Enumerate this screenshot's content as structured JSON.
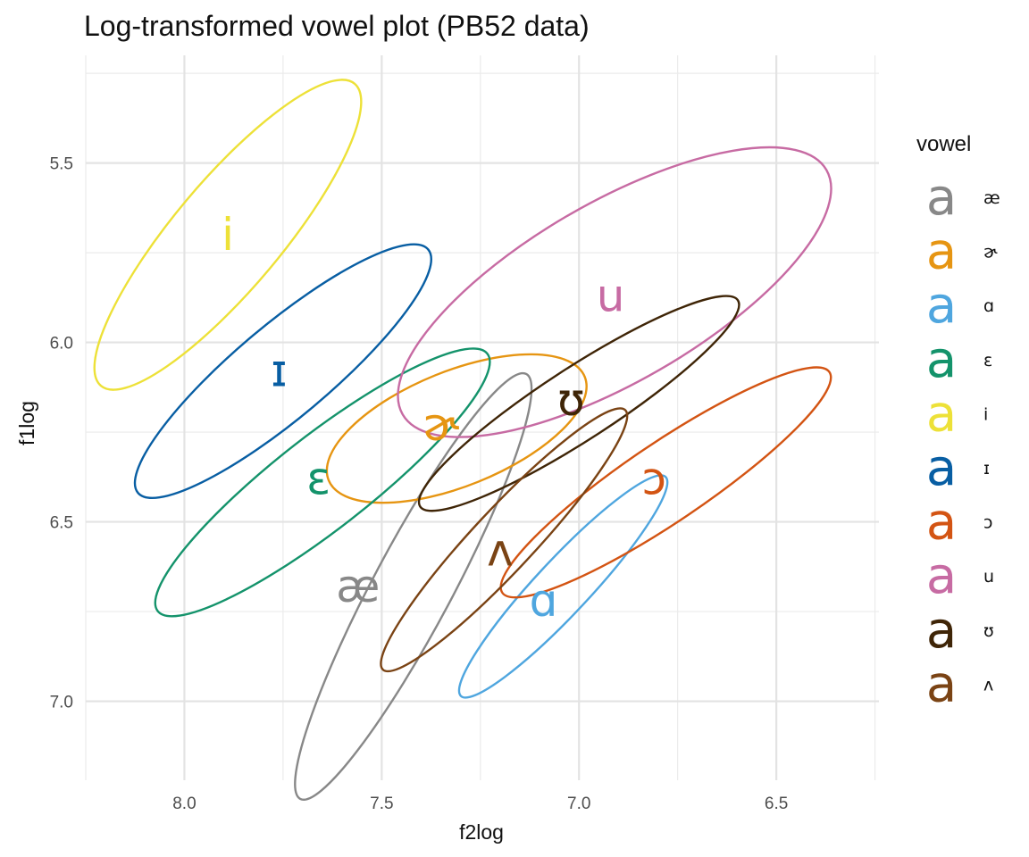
{
  "chart_data": {
    "type": "scatter",
    "title": "Log-transformed vowel plot (PB52 data)",
    "xlabel": "f2log",
    "ylabel": "f1log",
    "x_reversed": true,
    "y_reversed": true,
    "xlim": [
      8.25,
      6.24
    ],
    "ylim": [
      5.2,
      7.22
    ],
    "x_ticks": [
      {
        "value": 8.0,
        "label": "8.0"
      },
      {
        "value": 7.5,
        "label": "7.5"
      },
      {
        "value": 7.0,
        "label": "7.0"
      },
      {
        "value": 6.5,
        "label": "6.5"
      }
    ],
    "y_ticks": [
      {
        "value": 5.5,
        "label": "5.5"
      },
      {
        "value": 6.0,
        "label": "6.0"
      },
      {
        "value": 6.5,
        "label": "6.5"
      },
      {
        "value": 7.0,
        "label": "7.0"
      }
    ],
    "grid": true,
    "legend_title": "vowel",
    "legend_position": "right",
    "legend_key_glyph": "a",
    "series": [
      {
        "vowel": "æ",
        "color": "#888888",
        "centroid": [
          7.56,
          6.68
        ],
        "ellipse": {
          "cx": 7.42,
          "cy": 6.68,
          "rx": 0.61,
          "ry": 0.11,
          "angle_deg": -62
        }
      },
      {
        "vowel": "ɚ",
        "color": "#E69512",
        "centroid": [
          7.35,
          6.23
        ],
        "ellipse": {
          "cx": 7.31,
          "cy": 6.24,
          "rx": 0.35,
          "ry": 0.16,
          "angle_deg": -22
        }
      },
      {
        "vowel": "ɑ",
        "color": "#4FA6DF",
        "centroid": [
          7.09,
          6.72
        ],
        "ellipse": {
          "cx": 7.04,
          "cy": 6.68,
          "rx": 0.38,
          "ry": 0.075,
          "angle_deg": -47
        }
      },
      {
        "vowel": "ɛ",
        "color": "#14936B",
        "centroid": [
          7.66,
          6.38
        ],
        "ellipse": {
          "cx": 7.65,
          "cy": 6.39,
          "rx": 0.53,
          "ry": 0.13,
          "angle_deg": -38
        }
      },
      {
        "vowel": "i",
        "color": "#EDE138",
        "centroid": [
          7.89,
          5.7
        ],
        "ellipse": {
          "cx": 7.89,
          "cy": 5.7,
          "rx": 0.5,
          "ry": 0.15,
          "angle_deg": -50
        }
      },
      {
        "vowel": "ɪ",
        "color": "#085EA3",
        "centroid": [
          7.76,
          6.08
        ],
        "ellipse": {
          "cx": 7.75,
          "cy": 6.08,
          "rx": 0.48,
          "ry": 0.13,
          "angle_deg": -40
        }
      },
      {
        "vowel": "ɔ",
        "color": "#D35413",
        "centroid": [
          6.81,
          6.38
        ],
        "ellipse": {
          "cx": 6.78,
          "cy": 6.39,
          "rx": 0.5,
          "ry": 0.11,
          "angle_deg": -34
        }
      },
      {
        "vowel": "u",
        "color": "#C76BA3",
        "centroid": [
          6.92,
          5.87
        ],
        "ellipse": {
          "cx": 6.91,
          "cy": 5.86,
          "rx": 0.62,
          "ry": 0.25,
          "angle_deg": -30
        }
      },
      {
        "vowel": "ʊ",
        "color": "#3F2507",
        "centroid": [
          7.02,
          6.16
        ],
        "ellipse": {
          "cx": 7.0,
          "cy": 6.17,
          "rx": 0.48,
          "ry": 0.1,
          "angle_deg": -33
        }
      },
      {
        "vowel": "ʌ",
        "color": "#7A4314",
        "centroid": [
          7.2,
          6.58
        ],
        "ellipse": {
          "cx": 7.19,
          "cy": 6.55,
          "rx": 0.45,
          "ry": 0.085,
          "angle_deg": -47
        }
      }
    ]
  }
}
